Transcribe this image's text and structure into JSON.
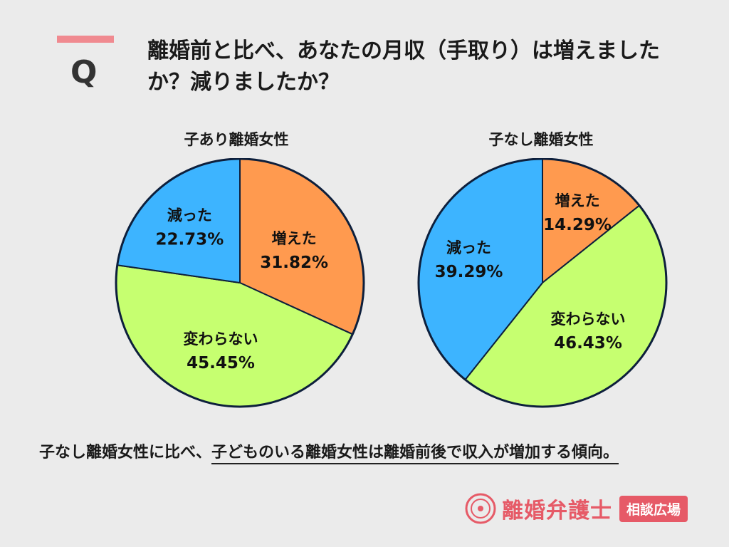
{
  "question": {
    "mark": "Q",
    "text": "離婚前と比べ、あなたの月収（手取り）は増えましたか？減りましたか？"
  },
  "chart_data": [
    {
      "type": "pie",
      "title": "子あり離婚女性",
      "slices": [
        {
          "label": "増えた",
          "value": 31.82,
          "display": "31.82%",
          "color": "#ff9a4f"
        },
        {
          "label": "変わらない",
          "value": 45.45,
          "display": "45.45%",
          "color": "#c6ff70"
        },
        {
          "label": "減った",
          "value": 22.73,
          "display": "22.73%",
          "color": "#3db4ff"
        }
      ]
    },
    {
      "type": "pie",
      "title": "子なし離婚女性",
      "slices": [
        {
          "label": "増えた",
          "value": 14.29,
          "display": "14.29%",
          "color": "#ff9a4f"
        },
        {
          "label": "変わらない",
          "value": 46.43,
          "display": "46.43%",
          "color": "#c6ff70"
        },
        {
          "label": "減った",
          "value": 39.29,
          "display": "39.29%",
          "color": "#3db4ff"
        }
      ]
    }
  ],
  "conclusion": {
    "prefix": "子なし離婚女性に比べ、",
    "emphasis": "子どものいる離婚女性は離婚前後で収入が増加する傾向。"
  },
  "brand": {
    "name": "離婚弁護士",
    "badge": "相談広場"
  }
}
